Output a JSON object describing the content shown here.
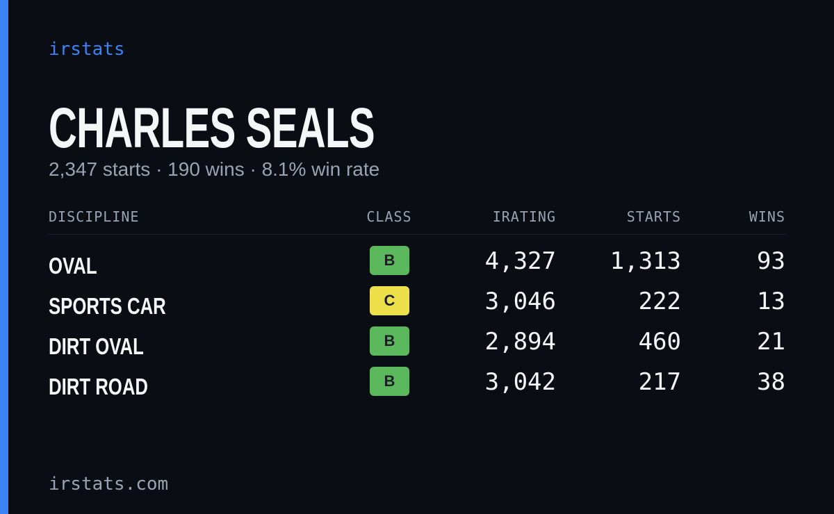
{
  "brand": "irstats",
  "driver": {
    "name": "CHARLES SEALS",
    "summary": "2,347 starts · 190 wins · 8.1% win rate"
  },
  "table": {
    "headers": [
      "DISCIPLINE",
      "CLASS",
      "IRATING",
      "STARTS",
      "WINS"
    ],
    "rows": [
      {
        "discipline": "OVAL",
        "class": "B",
        "class_color": "#5cb85c",
        "irating": "4,327",
        "starts": "1,313",
        "wins": "93"
      },
      {
        "discipline": "SPORTS CAR",
        "class": "C",
        "class_color": "#ede04a",
        "irating": "3,046",
        "starts": "222",
        "wins": "13"
      },
      {
        "discipline": "DIRT OVAL",
        "class": "B",
        "class_color": "#5cb85c",
        "irating": "2,894",
        "starts": "460",
        "wins": "21"
      },
      {
        "discipline": "DIRT ROAD",
        "class": "B",
        "class_color": "#5cb85c",
        "irating": "3,042",
        "starts": "217",
        "wins": "38"
      }
    ]
  },
  "footer": "irstats.com"
}
